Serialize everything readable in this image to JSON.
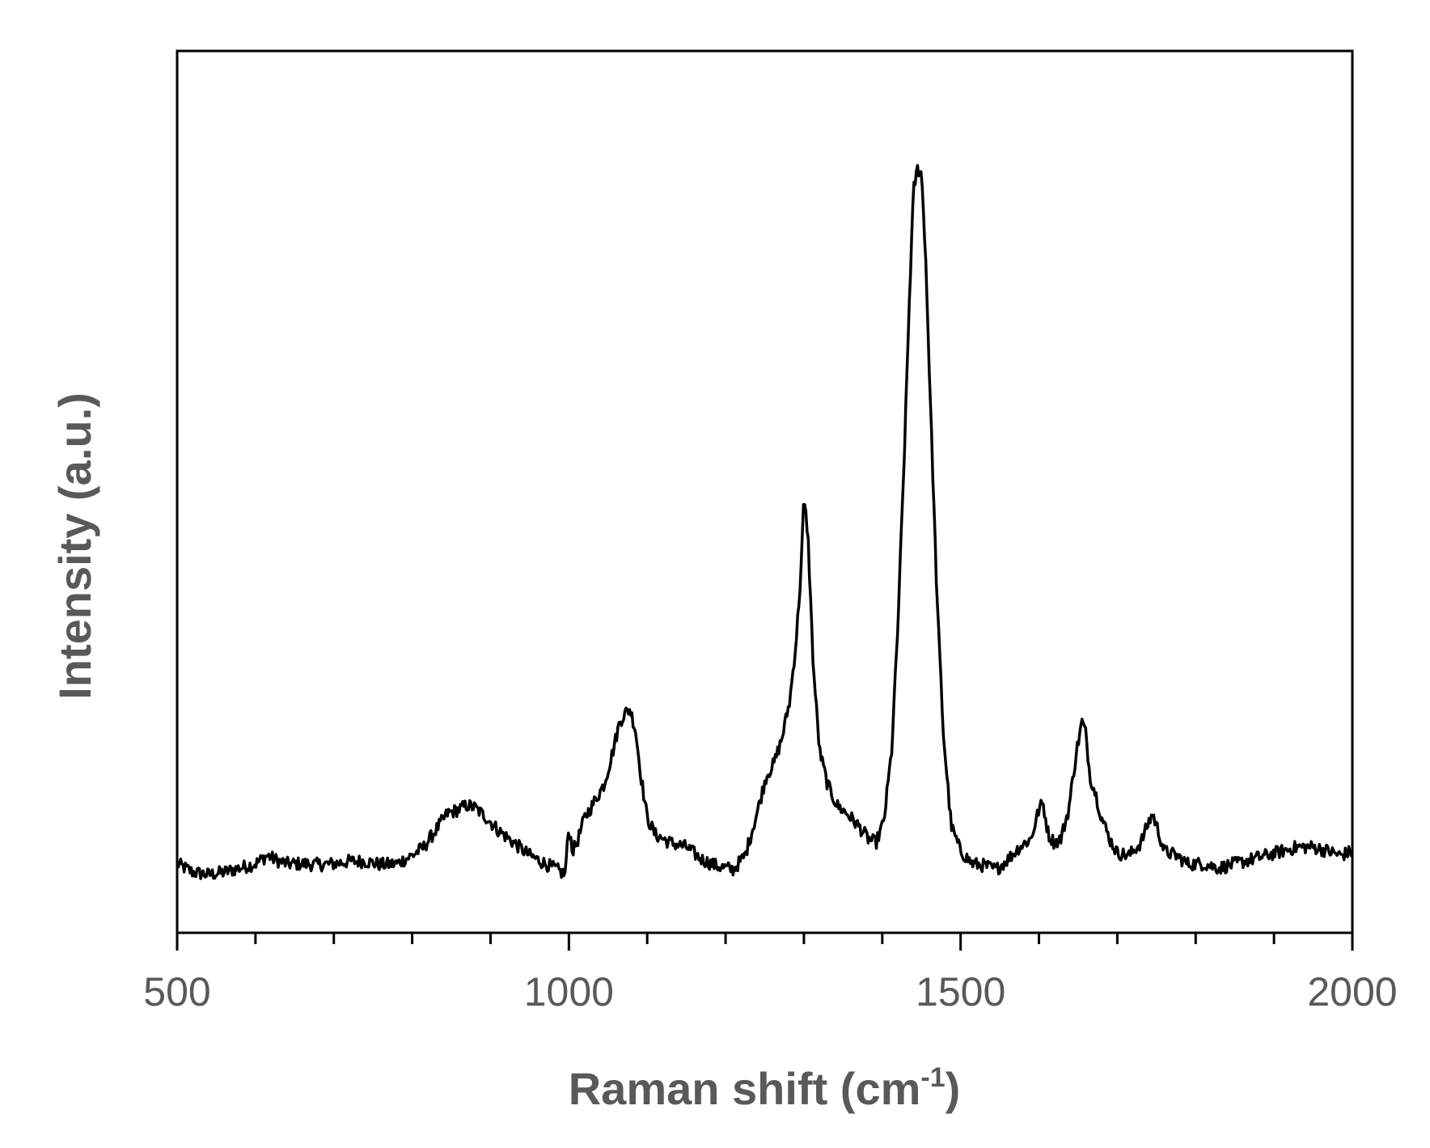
{
  "chart_data": {
    "type": "line",
    "title": "",
    "xlabel": "Raman shift (cm",
    "xlabel_sup": "-1",
    "xlabel_close": ")",
    "ylabel": "Intensity (a.u.)",
    "xlim": [
      500,
      2000
    ],
    "ylim": [
      0,
      100
    ],
    "x_ticks_major": [
      500,
      1000,
      1500,
      2000
    ],
    "x_tick_labels": [
      "500",
      "1000",
      "1500",
      "2000"
    ],
    "x_minor_step": 100,
    "y_ticks": [],
    "grid": false,
    "legend": "none",
    "line_color": "#000000",
    "series": [
      {
        "x": [
          500,
          520,
          540,
          560,
          580,
          600,
          615,
          625,
          640,
          660,
          680,
          700,
          720,
          740,
          760,
          780,
          800,
          815,
          830,
          845,
          860,
          870,
          880,
          895,
          910,
          930,
          950,
          970,
          985,
          995,
          1000,
          1005,
          1012,
          1020,
          1030,
          1045,
          1055,
          1065,
          1072,
          1078,
          1085,
          1092,
          1100,
          1110,
          1130,
          1150,
          1170,
          1190,
          1210,
          1225,
          1240,
          1252,
          1262,
          1272,
          1282,
          1290,
          1296,
          1300,
          1305,
          1312,
          1320,
          1330,
          1342,
          1355,
          1370,
          1382,
          1392,
          1402,
          1412,
          1420,
          1428,
          1435,
          1440,
          1445,
          1450,
          1455,
          1462,
          1470,
          1478,
          1488,
          1500,
          1515,
          1530,
          1545,
          1560,
          1575,
          1590,
          1600,
          1605,
          1612,
          1620,
          1628,
          1638,
          1648,
          1655,
          1660,
          1665,
          1672,
          1680,
          1690,
          1700,
          1715,
          1730,
          1738,
          1745,
          1752,
          1760,
          1775,
          1790,
          1810,
          1830,
          1850,
          1870,
          1890,
          1910,
          1930,
          1950,
          1970,
          1985,
          2000
        ],
        "y": [
          6.5,
          5.5,
          5.2,
          5.5,
          6.0,
          6.5,
          7.5,
          7.0,
          6.5,
          6.5,
          6.4,
          6.5,
          6.8,
          6.8,
          6.4,
          6.5,
          7.5,
          8.5,
          10.5,
          12.5,
          13.0,
          13.5,
          13.2,
          12.0,
          10.5,
          9.0,
          7.5,
          6.5,
          5.8,
          5.2,
          10.8,
          8.0,
          9.5,
          12.0,
          13.5,
          16.0,
          19.5,
          23.5,
          24.5,
          25.0,
          22.5,
          17.0,
          12.0,
          10.0,
          9.0,
          8.5,
          7.0,
          6.2,
          5.8,
          7.5,
          12.5,
          17.0,
          18.5,
          21.5,
          26.0,
          33.0,
          41.0,
          50.0,
          46.0,
          30.0,
          20.0,
          16.0,
          13.5,
          12.5,
          11.0,
          9.5,
          9.0,
          11.5,
          20.0,
          35.0,
          55.0,
          75.0,
          87.0,
          89.5,
          89.0,
          80.0,
          60.0,
          38.0,
          22.0,
          11.0,
          8.0,
          6.5,
          6.3,
          5.8,
          7.0,
          8.5,
          9.5,
          13.0,
          13.8,
          10.0,
          9.0,
          9.5,
          13.0,
          20.0,
          23.5,
          22.0,
          17.0,
          15.0,
          12.0,
          9.5,
          7.8,
          7.5,
          9.0,
          11.0,
          12.5,
          10.5,
          8.0,
          7.5,
          6.5,
          6.5,
          6.0,
          6.5,
          7.0,
          7.5,
          8.0,
          8.5,
          8.5,
          8.0,
          7.5,
          8.0
        ]
      }
    ]
  }
}
